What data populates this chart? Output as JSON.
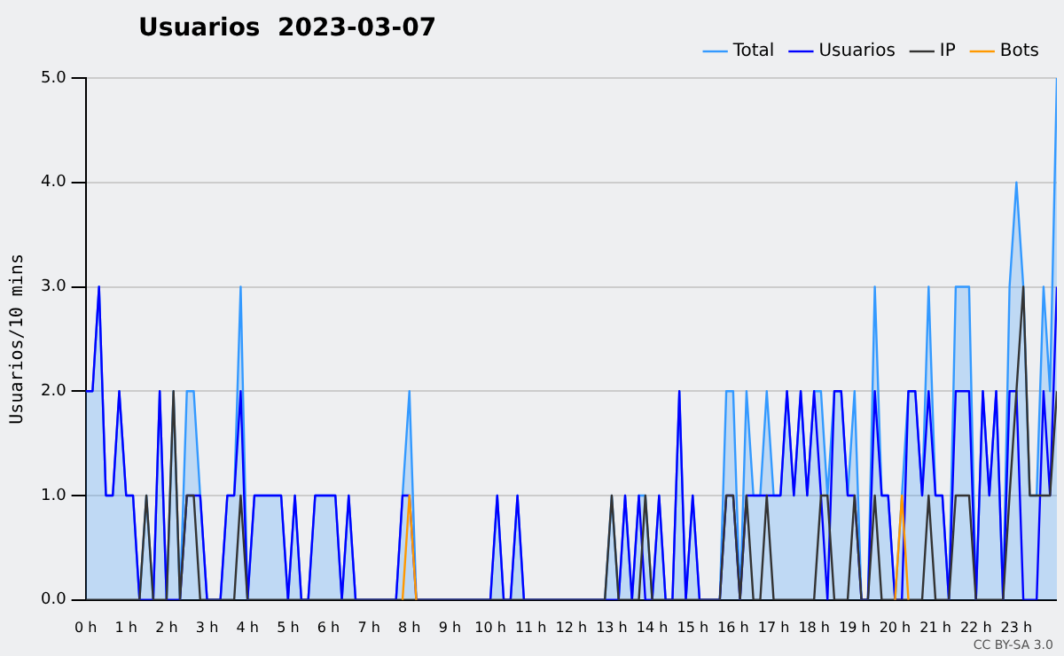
{
  "chart_data": {
    "type": "line",
    "title": "Usuarios  2023-03-07",
    "ylabel": "Usuarios/10 mins",
    "x": [
      0,
      0.17,
      0.33,
      0.5,
      0.67,
      0.83,
      1,
      1.17,
      1.33,
      1.5,
      1.67,
      1.83,
      2,
      2.17,
      2.33,
      2.5,
      2.67,
      2.83,
      3,
      3.17,
      3.33,
      3.5,
      3.67,
      3.83,
      4,
      4.17,
      4.33,
      4.5,
      4.67,
      4.83,
      5,
      5.17,
      5.33,
      5.5,
      5.67,
      5.83,
      6,
      6.17,
      6.33,
      6.5,
      6.67,
      6.83,
      7,
      7.17,
      7.33,
      7.5,
      7.67,
      7.83,
      8,
      8.17,
      8.33,
      8.5,
      8.67,
      8.83,
      9,
      9.17,
      9.33,
      9.5,
      9.67,
      9.83,
      10,
      10.17,
      10.33,
      10.5,
      10.67,
      10.83,
      11,
      11.17,
      11.33,
      11.5,
      11.67,
      11.83,
      12,
      12.17,
      12.33,
      12.5,
      12.67,
      12.83,
      13,
      13.17,
      13.33,
      13.5,
      13.67,
      13.83,
      14,
      14.17,
      14.33,
      14.5,
      14.67,
      14.83,
      15,
      15.17,
      15.33,
      15.5,
      15.67,
      15.83,
      16,
      16.17,
      16.33,
      16.5,
      16.67,
      16.83,
      17,
      17.17,
      17.33,
      17.5,
      17.67,
      17.83,
      18,
      18.17,
      18.33,
      18.5,
      18.67,
      18.83,
      19,
      19.17,
      19.33,
      19.5,
      19.67,
      19.83,
      20,
      20.17,
      20.33,
      20.5,
      20.67,
      20.83,
      21,
      21.17,
      21.33,
      21.5,
      21.67,
      21.83,
      22,
      22.17,
      22.33,
      22.5,
      22.67,
      22.83,
      23,
      23.17,
      23.33,
      23.5,
      23.67,
      23.83,
      24
    ],
    "series": [
      {
        "name": "Total",
        "type": "area",
        "color": "#3399ff",
        "values": [
          2,
          2,
          3,
          1,
          1,
          2,
          1,
          1,
          0,
          1,
          0,
          2,
          0,
          2,
          0,
          2,
          2,
          1,
          0,
          0,
          0,
          1,
          1,
          3,
          0,
          1,
          1,
          1,
          1,
          1,
          0,
          1,
          0,
          0,
          1,
          1,
          1,
          1,
          0,
          1,
          0,
          0,
          0,
          0,
          0,
          0,
          0,
          1,
          2,
          0,
          0,
          0,
          0,
          0,
          0,
          0,
          0,
          0,
          0,
          0,
          0,
          1,
          0,
          0,
          1,
          0,
          0,
          0,
          0,
          0,
          0,
          0,
          0,
          0,
          0,
          0,
          0,
          0,
          1,
          0,
          1,
          0,
          1,
          1,
          0,
          1,
          0,
          0,
          2,
          0,
          1,
          0,
          0,
          0,
          0,
          2,
          2,
          0,
          2,
          1,
          1,
          2,
          1,
          1,
          2,
          1,
          2,
          1,
          2,
          2,
          1,
          2,
          2,
          1,
          2,
          0,
          0,
          3,
          1,
          1,
          0,
          1,
          2,
          2,
          1,
          3,
          1,
          1,
          0,
          3,
          3,
          3,
          0,
          2,
          1,
          2,
          0,
          3,
          4,
          3,
          1,
          1,
          3,
          2,
          5
        ]
      },
      {
        "name": "Usuarios",
        "type": "line",
        "color": "#0000ff",
        "values": [
          2,
          2,
          3,
          1,
          1,
          2,
          1,
          1,
          0,
          0,
          0,
          2,
          0,
          0,
          0,
          1,
          1,
          1,
          0,
          0,
          0,
          1,
          1,
          2,
          0,
          1,
          1,
          1,
          1,
          1,
          0,
          1,
          0,
          0,
          1,
          1,
          1,
          1,
          0,
          1,
          0,
          0,
          0,
          0,
          0,
          0,
          0,
          1,
          1,
          0,
          0,
          0,
          0,
          0,
          0,
          0,
          0,
          0,
          0,
          0,
          0,
          1,
          0,
          0,
          1,
          0,
          0,
          0,
          0,
          0,
          0,
          0,
          0,
          0,
          0,
          0,
          0,
          0,
          0,
          0,
          1,
          0,
          1,
          0,
          0,
          1,
          0,
          0,
          2,
          0,
          1,
          0,
          0,
          0,
          0,
          1,
          1,
          0,
          1,
          1,
          1,
          1,
          1,
          1,
          2,
          1,
          2,
          1,
          2,
          1,
          0,
          2,
          2,
          1,
          1,
          0,
          0,
          2,
          1,
          1,
          0,
          0,
          2,
          2,
          1,
          2,
          1,
          1,
          0,
          2,
          2,
          2,
          0,
          2,
          1,
          2,
          0,
          2,
          2,
          0,
          0,
          0,
          2,
          1,
          3
        ]
      },
      {
        "name": "IP",
        "type": "line",
        "color": "#333333",
        "values": [
          0,
          0,
          0,
          0,
          0,
          0,
          0,
          0,
          0,
          1,
          0,
          0,
          0,
          2,
          0,
          1,
          1,
          0,
          0,
          0,
          0,
          0,
          0,
          1,
          0,
          0,
          0,
          0,
          0,
          0,
          0,
          0,
          0,
          0,
          0,
          0,
          0,
          0,
          0,
          0,
          0,
          0,
          0,
          0,
          0,
          0,
          0,
          0,
          0,
          0,
          0,
          0,
          0,
          0,
          0,
          0,
          0,
          0,
          0,
          0,
          0,
          0,
          0,
          0,
          0,
          0,
          0,
          0,
          0,
          0,
          0,
          0,
          0,
          0,
          0,
          0,
          0,
          0,
          1,
          0,
          0,
          0,
          0,
          1,
          0,
          0,
          0,
          0,
          0,
          0,
          0,
          0,
          0,
          0,
          0,
          1,
          1,
          0,
          1,
          0,
          0,
          1,
          0,
          0,
          0,
          0,
          0,
          0,
          0,
          1,
          1,
          0,
          0,
          0,
          1,
          0,
          0,
          1,
          0,
          0,
          0,
          0,
          0,
          0,
          0,
          1,
          0,
          0,
          0,
          1,
          1,
          1,
          0,
          0,
          0,
          0,
          0,
          1,
          2,
          3,
          1,
          1,
          1,
          1,
          2
        ]
      },
      {
        "name": "Bots",
        "type": "line",
        "color": "#ff9900",
        "values": [
          null,
          null,
          null,
          null,
          null,
          null,
          null,
          null,
          null,
          null,
          null,
          null,
          null,
          null,
          null,
          null,
          null,
          null,
          null,
          null,
          null,
          null,
          null,
          null,
          null,
          null,
          null,
          null,
          null,
          null,
          null,
          null,
          null,
          null,
          null,
          null,
          null,
          null,
          null,
          null,
          null,
          null,
          null,
          null,
          null,
          null,
          null,
          0,
          1,
          0,
          null,
          null,
          null,
          null,
          null,
          null,
          null,
          null,
          null,
          null,
          null,
          null,
          null,
          null,
          null,
          null,
          null,
          null,
          null,
          null,
          null,
          null,
          null,
          null,
          null,
          null,
          null,
          null,
          null,
          null,
          null,
          null,
          null,
          null,
          null,
          null,
          null,
          null,
          null,
          null,
          null,
          null,
          null,
          null,
          null,
          null,
          null,
          null,
          null,
          null,
          null,
          null,
          null,
          null,
          null,
          null,
          null,
          null,
          null,
          null,
          null,
          null,
          null,
          null,
          null,
          null,
          null,
          null,
          null,
          null,
          0,
          1,
          0,
          null,
          null,
          null,
          null,
          null,
          null,
          null,
          null,
          null,
          null,
          null,
          null,
          null,
          null,
          null,
          null,
          null,
          null,
          null,
          null,
          null,
          null
        ]
      }
    ],
    "xlim": [
      0,
      24
    ],
    "xticks": [
      {
        "value": 0,
        "label": "0 h"
      },
      {
        "value": 1,
        "label": "1 h"
      },
      {
        "value": 2,
        "label": "2 h"
      },
      {
        "value": 3,
        "label": "3 h"
      },
      {
        "value": 4,
        "label": "4 h"
      },
      {
        "value": 5,
        "label": "5 h"
      },
      {
        "value": 6,
        "label": "6 h"
      },
      {
        "value": 7,
        "label": "7 h"
      },
      {
        "value": 8,
        "label": "8 h"
      },
      {
        "value": 9,
        "label": "9 h"
      },
      {
        "value": 10,
        "label": "10 h"
      },
      {
        "value": 11,
        "label": "11 h"
      },
      {
        "value": 12,
        "label": "12 h"
      },
      {
        "value": 13,
        "label": "13 h"
      },
      {
        "value": 14,
        "label": "14 h"
      },
      {
        "value": 15,
        "label": "15 h"
      },
      {
        "value": 16,
        "label": "16 h"
      },
      {
        "value": 17,
        "label": "17 h"
      },
      {
        "value": 18,
        "label": "18 h"
      },
      {
        "value": 19,
        "label": "19 h"
      },
      {
        "value": 20,
        "label": "20 h"
      },
      {
        "value": 21,
        "label": "21 h"
      },
      {
        "value": 22,
        "label": "22 h"
      },
      {
        "value": 23,
        "label": "23 h"
      }
    ],
    "ylim": [
      0,
      5
    ],
    "yticks": [
      {
        "value": 0,
        "label": "0.0"
      },
      {
        "value": 1,
        "label": "1.0"
      },
      {
        "value": 2,
        "label": "2.0"
      },
      {
        "value": 3,
        "label": "3.0"
      },
      {
        "value": 4,
        "label": "4.0"
      },
      {
        "value": 5,
        "label": "5.0"
      }
    ],
    "grid": "y",
    "legend": "top right",
    "marker": "none",
    "line_style": "solid",
    "annotations": [
      "CC BY-SA 3.0"
    ]
  }
}
